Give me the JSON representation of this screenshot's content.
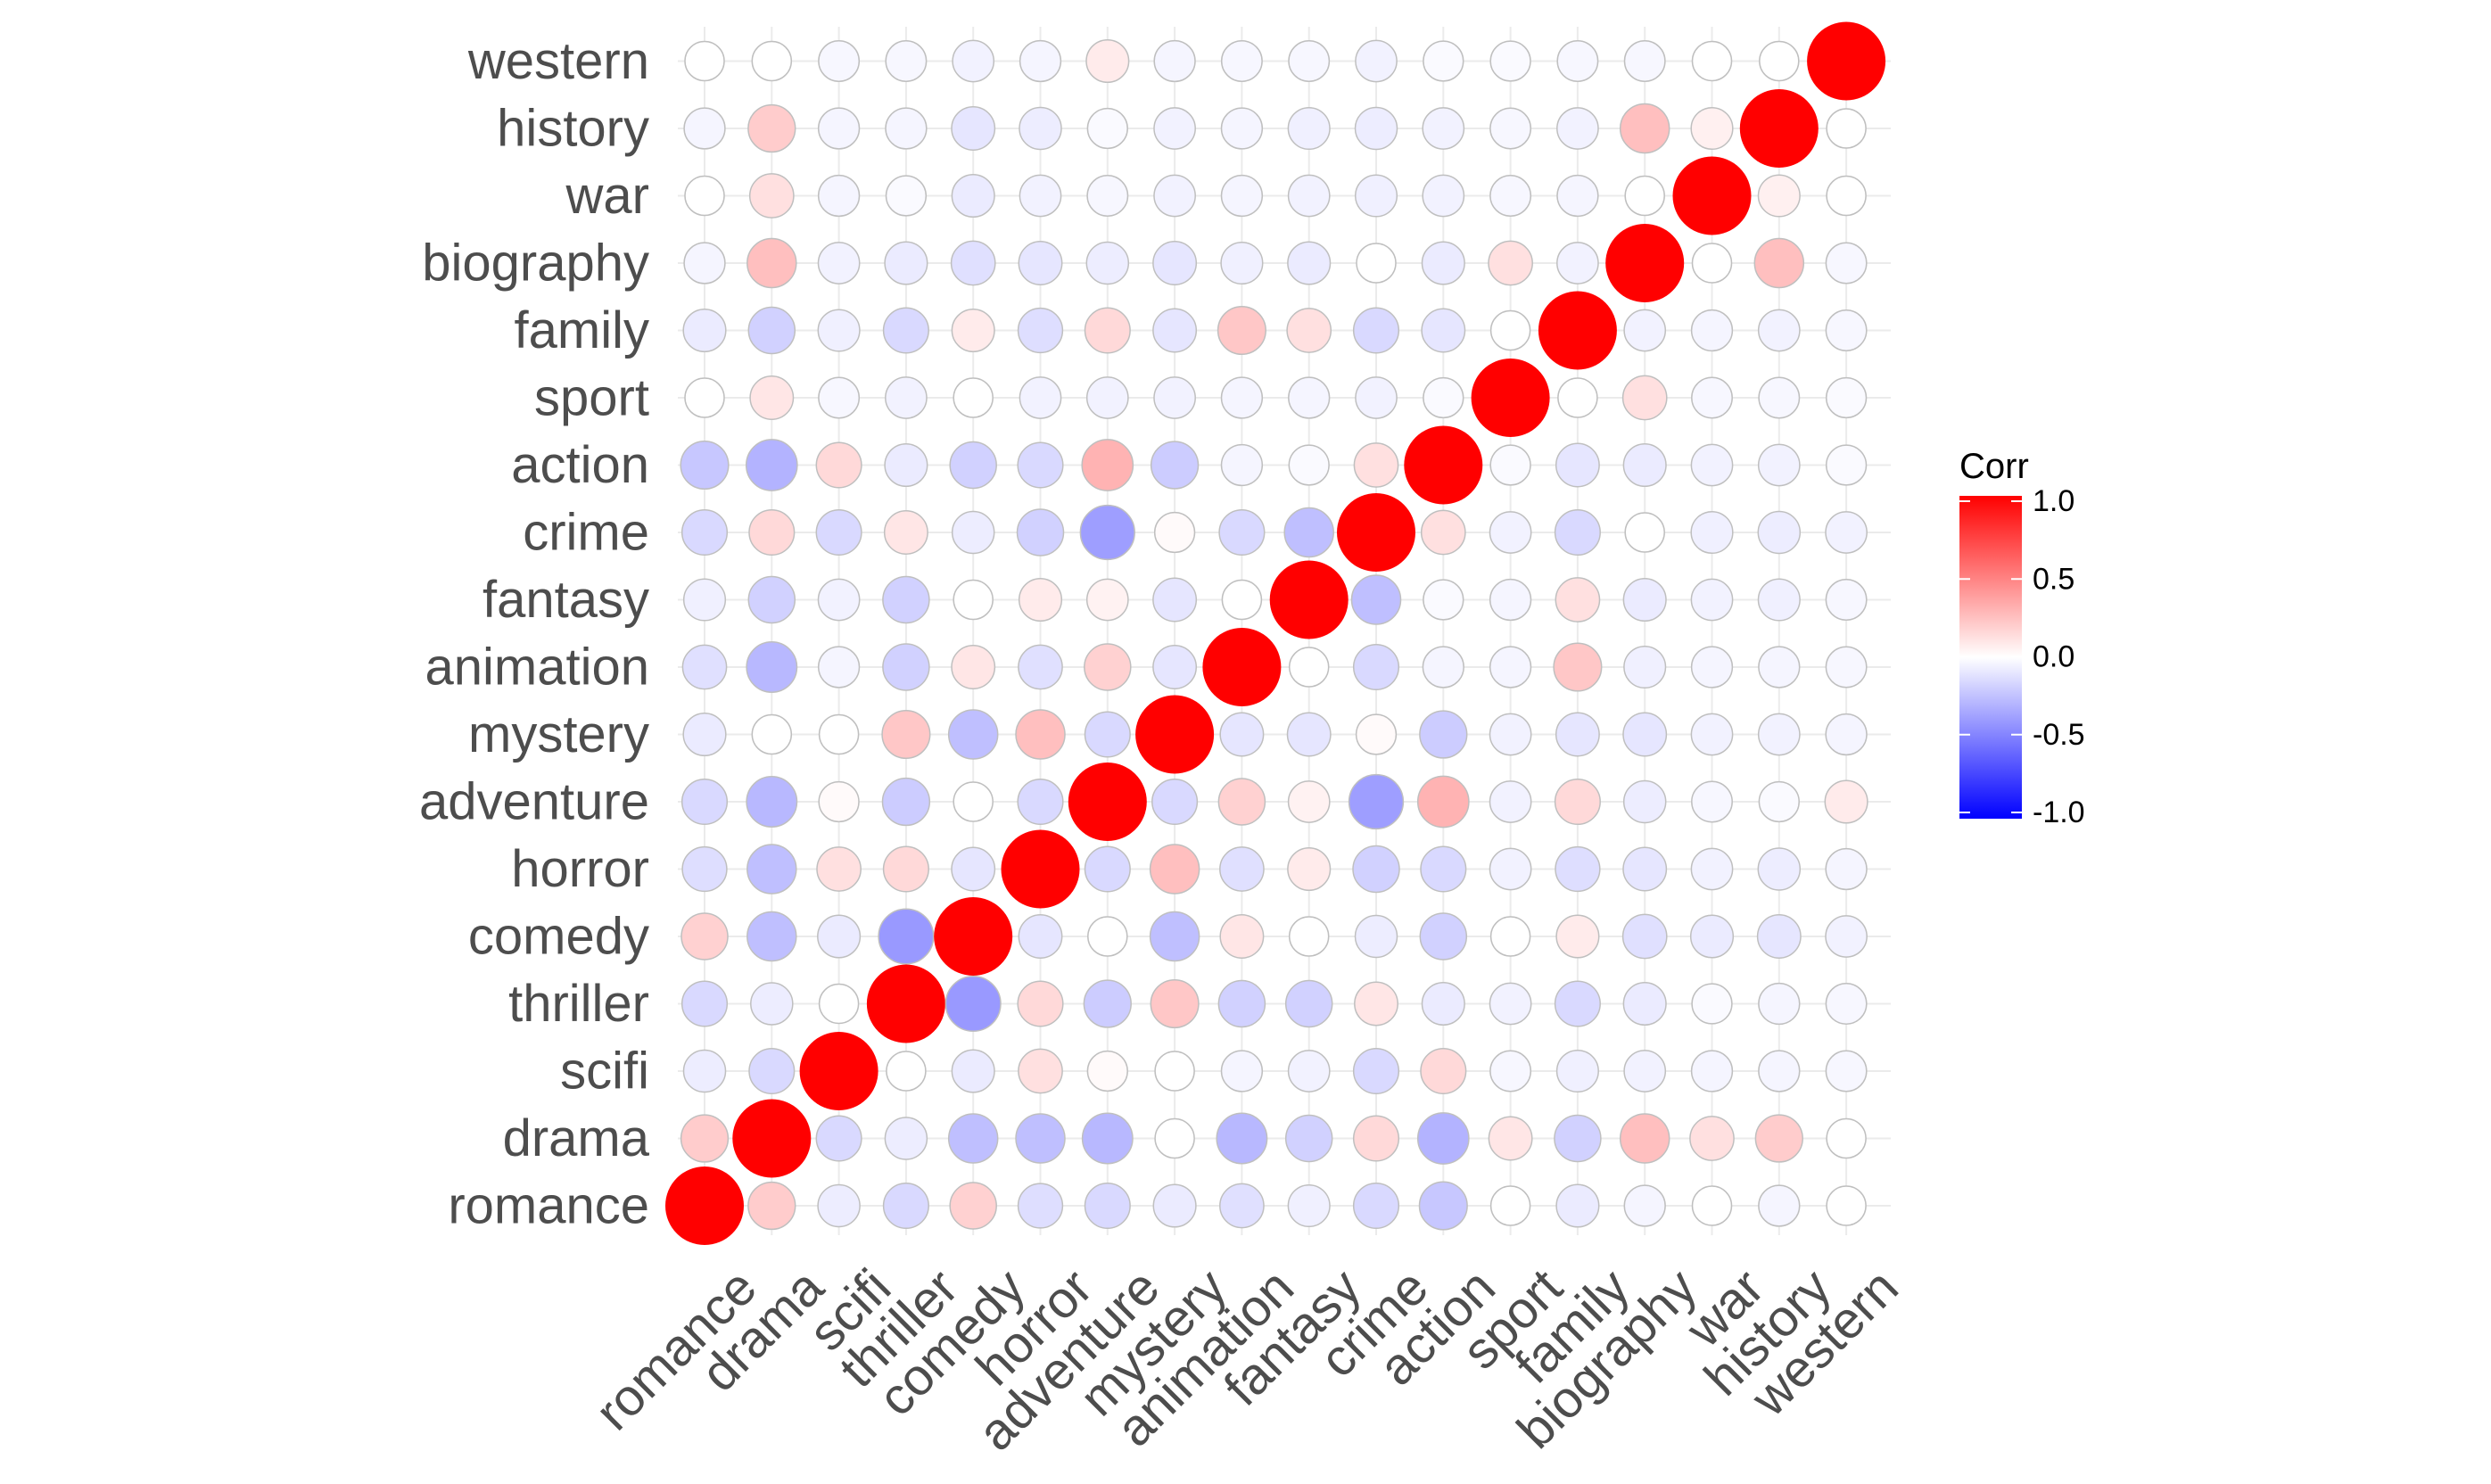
{
  "chart_data": {
    "type": "heatmap",
    "variables": [
      "romance",
      "drama",
      "scifi",
      "thriller",
      "comedy",
      "horror",
      "adventure",
      "mystery",
      "animation",
      "fantasy",
      "crime",
      "action",
      "sport",
      "family",
      "biography",
      "war",
      "history",
      "western"
    ],
    "correlations": [
      [
        1.0,
        0.2,
        -0.07,
        -0.15,
        0.18,
        -0.13,
        -0.15,
        -0.08,
        -0.12,
        -0.06,
        -0.15,
        -0.22,
        0.0,
        -0.08,
        -0.04,
        0.0,
        -0.04,
        0.0
      ],
      [
        0.2,
        1.0,
        -0.15,
        -0.07,
        -0.25,
        -0.25,
        -0.28,
        0.0,
        -0.28,
        -0.18,
        0.15,
        -0.3,
        0.1,
        -0.18,
        0.25,
        0.12,
        0.2,
        0.0
      ],
      [
        -0.07,
        -0.15,
        1.0,
        0.0,
        -0.08,
        0.12,
        0.02,
        0.0,
        -0.04,
        -0.05,
        -0.15,
        0.15,
        -0.03,
        -0.06,
        -0.05,
        -0.04,
        -0.04,
        -0.03
      ],
      [
        -0.15,
        -0.07,
        0.0,
        1.0,
        -0.4,
        0.15,
        -0.2,
        0.22,
        -0.18,
        -0.18,
        0.1,
        -0.08,
        -0.05,
        -0.15,
        -0.08,
        -0.02,
        -0.04,
        -0.03
      ],
      [
        0.18,
        -0.25,
        -0.08,
        -0.4,
        1.0,
        -0.1,
        0.0,
        -0.25,
        0.1,
        0.0,
        -0.07,
        -0.18,
        0.0,
        0.08,
        -0.12,
        -0.08,
        -0.1,
        -0.05
      ],
      [
        -0.13,
        -0.25,
        0.12,
        0.15,
        -0.1,
        1.0,
        -0.15,
        0.25,
        -0.12,
        0.08,
        -0.18,
        -0.15,
        -0.05,
        -0.13,
        -0.1,
        -0.05,
        -0.07,
        -0.04
      ],
      [
        -0.15,
        -0.28,
        0.02,
        -0.2,
        0.0,
        -0.15,
        1.0,
        -0.15,
        0.18,
        0.05,
        -0.38,
        0.3,
        -0.05,
        0.15,
        -0.07,
        -0.03,
        -0.02,
        0.08
      ],
      [
        -0.08,
        0.0,
        0.0,
        0.22,
        -0.25,
        0.25,
        -0.15,
        1.0,
        -0.1,
        -0.1,
        0.02,
        -0.2,
        -0.05,
        -0.1,
        -0.1,
        -0.05,
        -0.05,
        -0.04
      ],
      [
        -0.12,
        -0.28,
        -0.04,
        -0.18,
        0.1,
        -0.12,
        0.18,
        -0.1,
        1.0,
        0.0,
        -0.15,
        -0.04,
        -0.04,
        0.22,
        -0.06,
        -0.04,
        -0.04,
        -0.03
      ],
      [
        -0.06,
        -0.18,
        -0.05,
        -0.18,
        0.0,
        0.08,
        0.05,
        -0.1,
        0.0,
        1.0,
        -0.25,
        -0.02,
        -0.04,
        0.12,
        -0.08,
        -0.05,
        -0.06,
        -0.03
      ],
      [
        -0.15,
        0.15,
        -0.15,
        0.1,
        -0.07,
        -0.18,
        -0.38,
        0.02,
        -0.15,
        -0.25,
        1.0,
        0.12,
        -0.05,
        -0.15,
        0.0,
        -0.06,
        -0.07,
        -0.05
      ],
      [
        -0.22,
        -0.3,
        0.15,
        -0.08,
        -0.18,
        -0.15,
        0.3,
        -0.2,
        -0.04,
        -0.02,
        0.12,
        1.0,
        -0.02,
        -0.1,
        -0.08,
        -0.05,
        -0.05,
        -0.02
      ],
      [
        0.0,
        0.1,
        -0.03,
        -0.05,
        0.0,
        -0.05,
        -0.05,
        -0.05,
        -0.04,
        -0.04,
        -0.05,
        -0.02,
        1.0,
        0.0,
        0.12,
        -0.03,
        -0.03,
        -0.02
      ],
      [
        -0.08,
        -0.18,
        -0.06,
        -0.15,
        0.08,
        -0.13,
        0.15,
        -0.1,
        0.22,
        0.12,
        -0.15,
        -0.1,
        0.0,
        1.0,
        -0.05,
        -0.04,
        -0.05,
        -0.03
      ],
      [
        -0.04,
        0.25,
        -0.05,
        -0.08,
        -0.12,
        -0.1,
        -0.07,
        -0.1,
        -0.06,
        -0.08,
        0.0,
        -0.08,
        0.12,
        -0.05,
        1.0,
        0.0,
        0.25,
        -0.03
      ],
      [
        0.0,
        0.12,
        -0.04,
        -0.02,
        -0.08,
        -0.05,
        -0.03,
        -0.05,
        -0.04,
        -0.05,
        -0.06,
        -0.05,
        -0.03,
        -0.04,
        0.0,
        1.0,
        0.06,
        0.0
      ],
      [
        -0.04,
        0.2,
        -0.04,
        -0.04,
        -0.1,
        -0.07,
        -0.02,
        -0.05,
        -0.04,
        -0.06,
        -0.07,
        -0.05,
        -0.03,
        -0.05,
        0.25,
        0.06,
        1.0,
        0.0
      ],
      [
        0.0,
        0.0,
        -0.03,
        -0.03,
        -0.05,
        -0.04,
        0.08,
        -0.04,
        -0.03,
        -0.03,
        -0.05,
        -0.02,
        -0.02,
        -0.03,
        -0.03,
        0.0,
        0.0,
        1.0
      ]
    ],
    "legend": {
      "title": "Corr",
      "ticks": [
        "1.0",
        "0.5",
        "0.0",
        "-0.5",
        "-1.0"
      ],
      "tick_values": [
        1.0,
        0.5,
        0.0,
        -0.5,
        -1.0
      ],
      "range": [
        -1,
        1
      ],
      "colors": {
        "high": "#FF0000",
        "mid": "#FFFFFF",
        "low": "#0000FF"
      },
      "placement": "right"
    },
    "grid": true,
    "colors": {
      "axis_text": "#4d4d4d",
      "grid": "#ebebeb",
      "circle_outline": "#bfbfbf",
      "legend_text": "#000000"
    }
  }
}
